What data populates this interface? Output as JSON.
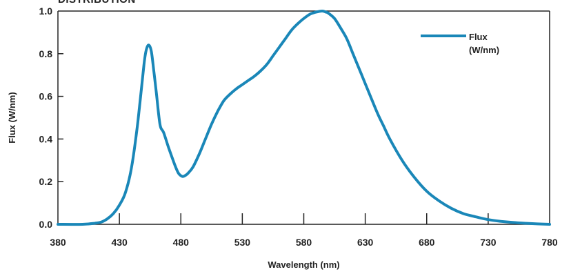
{
  "chart_data": {
    "type": "line",
    "title": "DISTRIBUTION",
    "xlabel": "Wavelength (nm)",
    "ylabel": "Flux (W/nm)",
    "xlim": [
      380,
      780
    ],
    "ylim": [
      0,
      1.0
    ],
    "x_ticks": [
      380,
      430,
      480,
      530,
      580,
      630,
      680,
      730,
      780
    ],
    "x_tick_labels": [
      "380",
      "430",
      "480",
      "530",
      "580",
      "630",
      "680",
      "730",
      "780"
    ],
    "y_ticks": [
      0.0,
      0.2,
      0.4,
      0.6,
      0.8,
      1.0
    ],
    "y_tick_labels": [
      "0.0",
      "0.2",
      "0.4",
      "0.6",
      "0.8",
      "1.0"
    ],
    "legend_position": "top-right",
    "colors": {
      "series": "#1a87b8",
      "axis": "#222222"
    },
    "series": [
      {
        "name": "Flux (W/nm)",
        "x": [
          380,
          400,
          410,
          415,
          420,
          425,
          430,
          435,
          440,
          445,
          450,
          452,
          454,
          456,
          458,
          460,
          463,
          466,
          470,
          475,
          478,
          481,
          483,
          486,
          490,
          495,
          500,
          505,
          510,
          515,
          520,
          525,
          530,
          535,
          540,
          545,
          550,
          555,
          560,
          565,
          570,
          575,
          580,
          585,
          590,
          595,
          598,
          600,
          605,
          610,
          615,
          620,
          625,
          630,
          635,
          640,
          645,
          650,
          660,
          670,
          680,
          690,
          700,
          710,
          720,
          730,
          740,
          750,
          760,
          770,
          780
        ],
        "values": [
          0.0,
          0.0,
          0.005,
          0.01,
          0.025,
          0.05,
          0.09,
          0.15,
          0.27,
          0.48,
          0.75,
          0.82,
          0.84,
          0.81,
          0.72,
          0.62,
          0.47,
          0.43,
          0.36,
          0.28,
          0.24,
          0.225,
          0.227,
          0.24,
          0.27,
          0.33,
          0.4,
          0.47,
          0.53,
          0.58,
          0.61,
          0.635,
          0.655,
          0.675,
          0.695,
          0.72,
          0.75,
          0.79,
          0.83,
          0.87,
          0.91,
          0.94,
          0.965,
          0.985,
          0.995,
          1.0,
          0.995,
          0.99,
          0.965,
          0.92,
          0.87,
          0.8,
          0.73,
          0.66,
          0.59,
          0.52,
          0.46,
          0.4,
          0.3,
          0.22,
          0.155,
          0.11,
          0.075,
          0.05,
          0.035,
          0.022,
          0.014,
          0.009,
          0.005,
          0.002,
          0.0
        ]
      }
    ]
  }
}
